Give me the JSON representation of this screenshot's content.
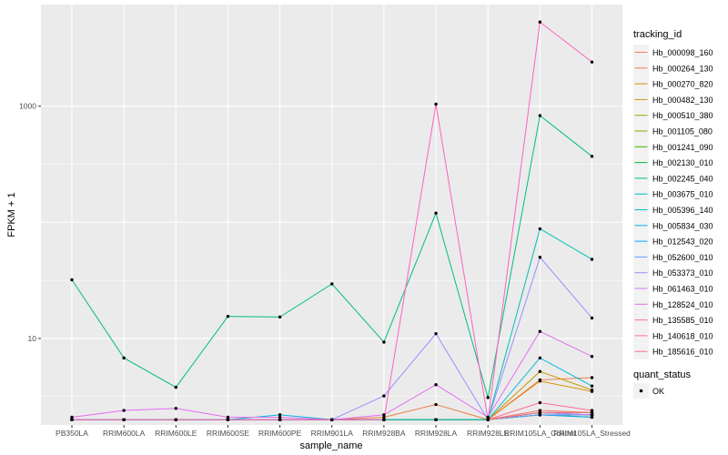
{
  "chart_data": {
    "type": "line",
    "xlabel": "sample_name",
    "ylabel": "FPKM + 1",
    "y_scale": "log10",
    "ylim": [
      1.8,
      7500
    ],
    "y_ticks": [
      {
        "value": 10,
        "label": "10"
      },
      {
        "value": 1000,
        "label": "1000"
      }
    ],
    "grid": true,
    "legend_position": "right",
    "categories": [
      "PB350LA",
      "RRIM600LA",
      "RRIM600LE",
      "RRIM600SE",
      "RRIM600PE",
      "RRIM901LA",
      "RRIM928BA",
      "RRIM928LA",
      "RRIM928LE",
      "RRIM105LA_Control",
      "RRIM105LA_Stressed"
    ],
    "color_legend": {
      "title": "tracking_id",
      "entries": [
        {
          "name": "Hb_000098_160",
          "color": "#F8766D"
        },
        {
          "name": "Hb_000264_130",
          "color": "#EE8043"
        },
        {
          "name": "Hb_000270_820",
          "color": "#DB8E00"
        },
        {
          "name": "Hb_000482_130",
          "color": "#C49A00"
        },
        {
          "name": "Hb_000510_380",
          "color": "#A3A500"
        },
        {
          "name": "Hb_001105_080",
          "color": "#7CAE00"
        },
        {
          "name": "Hb_001241_090",
          "color": "#39B600"
        },
        {
          "name": "Hb_002130_010",
          "color": "#00BA38"
        },
        {
          "name": "Hb_002245_040",
          "color": "#00BF7D"
        },
        {
          "name": "Hb_003675_010",
          "color": "#00C0B3"
        },
        {
          "name": "Hb_005396_140",
          "color": "#00BCD8"
        },
        {
          "name": "Hb_005834_030",
          "color": "#00B4EF"
        },
        {
          "name": "Hb_012543_020",
          "color": "#00A5FF"
        },
        {
          "name": "Hb_052600_010",
          "color": "#619CFF"
        },
        {
          "name": "Hb_053373_010",
          "color": "#9590FF"
        },
        {
          "name": "Hb_061463_010",
          "color": "#C77CFF"
        },
        {
          "name": "Hb_128524_010",
          "color": "#E76BF3"
        },
        {
          "name": "Hb_135585_010",
          "color": "#FF62BC"
        },
        {
          "name": "Hb_140618_010",
          "color": "#FF6C91"
        },
        {
          "name": "Hb_185616_010",
          "color": "#FC717F"
        }
      ]
    },
    "shape_legend": {
      "title": "quant_status",
      "entries": [
        {
          "name": "OK"
        }
      ]
    },
    "series": [
      {
        "name": "Hb_000098_160",
        "color": "#F8766D",
        "values": [
          2,
          2,
          2,
          2,
          2,
          2,
          2,
          2,
          2,
          2.4,
          2.3
        ]
      },
      {
        "name": "Hb_000264_130",
        "color": "#EE8043",
        "values": [
          2,
          2,
          2,
          2,
          2,
          2,
          2.1,
          2.7,
          2,
          4.4,
          4.6
        ]
      },
      {
        "name": "Hb_000270_820",
        "color": "#DB8E00",
        "values": [
          2,
          2,
          2,
          2,
          2,
          2,
          2,
          2,
          2,
          4.3,
          3.5
        ]
      },
      {
        "name": "Hb_000482_130",
        "color": "#C49A00",
        "values": [
          2,
          2,
          2,
          2,
          2,
          2,
          2,
          2,
          2,
          5.2,
          3.6
        ]
      },
      {
        "name": "Hb_000510_380",
        "color": "#A3A500",
        "values": [
          2,
          2,
          2,
          2,
          2,
          2,
          2,
          2,
          2,
          2.2,
          2.2
        ]
      },
      {
        "name": "Hb_001105_080",
        "color": "#7CAE00",
        "values": [
          2,
          2,
          2,
          2,
          2,
          2,
          2,
          2,
          2,
          2.3,
          2.2
        ]
      },
      {
        "name": "Hb_001241_090",
        "color": "#39B600",
        "values": [
          2,
          2,
          2,
          2,
          2,
          2,
          2,
          2,
          2,
          2.2,
          2.1
        ]
      },
      {
        "name": "Hb_002130_010",
        "color": "#00BA38",
        "values": [
          2,
          2,
          2,
          2,
          2,
          2,
          2,
          2,
          2,
          2.3,
          2.3
        ]
      },
      {
        "name": "Hb_002245_040",
        "color": "#00BF7D",
        "values": [
          32,
          6.8,
          3.8,
          15.5,
          15.3,
          29.5,
          9.3,
          120,
          3.1,
          830,
          370
        ]
      },
      {
        "name": "Hb_003675_010",
        "color": "#00C0B3",
        "values": [
          2,
          2,
          2,
          2,
          2,
          2,
          2,
          2,
          2,
          88,
          48
        ]
      },
      {
        "name": "Hb_005396_140",
        "color": "#00BCD8",
        "values": [
          2,
          2,
          2,
          2,
          2.2,
          2,
          2,
          2,
          2,
          6.8,
          3.9
        ]
      },
      {
        "name": "Hb_005834_030",
        "color": "#00B4EF",
        "values": [
          2,
          2,
          2,
          2,
          2,
          2,
          2,
          2,
          2,
          2.3,
          2.2
        ]
      },
      {
        "name": "Hb_012543_020",
        "color": "#00A5FF",
        "values": [
          2,
          2,
          2,
          2,
          2,
          2,
          2,
          2,
          2,
          2.2,
          2.1
        ]
      },
      {
        "name": "Hb_052600_010",
        "color": "#619CFF",
        "values": [
          2,
          2,
          2,
          2,
          2,
          2,
          2,
          2,
          2,
          2.2,
          2.2
        ]
      },
      {
        "name": "Hb_053373_010",
        "color": "#9590FF",
        "values": [
          2,
          2,
          2,
          2,
          2,
          2,
          3.2,
          11,
          2,
          50,
          15
        ]
      },
      {
        "name": "Hb_061463_010",
        "color": "#C77CFF",
        "values": [
          2,
          2,
          2,
          2,
          2,
          2,
          2,
          2,
          2,
          2.3,
          2.2
        ]
      },
      {
        "name": "Hb_128524_010",
        "color": "#E76BF3",
        "values": [
          2.1,
          2.4,
          2.5,
          2.1,
          2.1,
          2,
          2.2,
          4,
          2.1,
          11.5,
          7
        ]
      },
      {
        "name": "Hb_135585_010",
        "color": "#FF62BC",
        "values": [
          2,
          2,
          2,
          2,
          2,
          2,
          2,
          1040,
          2,
          5300,
          2400
        ]
      },
      {
        "name": "Hb_140618_010",
        "color": "#FF6C91",
        "values": [
          2,
          2,
          2,
          2,
          2,
          2,
          2,
          2,
          2,
          2.8,
          2.4
        ]
      },
      {
        "name": "Hb_185616_010",
        "color": "#FC717F",
        "values": [
          2,
          2,
          2,
          2,
          2,
          2,
          2,
          2,
          2,
          2.3,
          2.3
        ]
      }
    ]
  }
}
